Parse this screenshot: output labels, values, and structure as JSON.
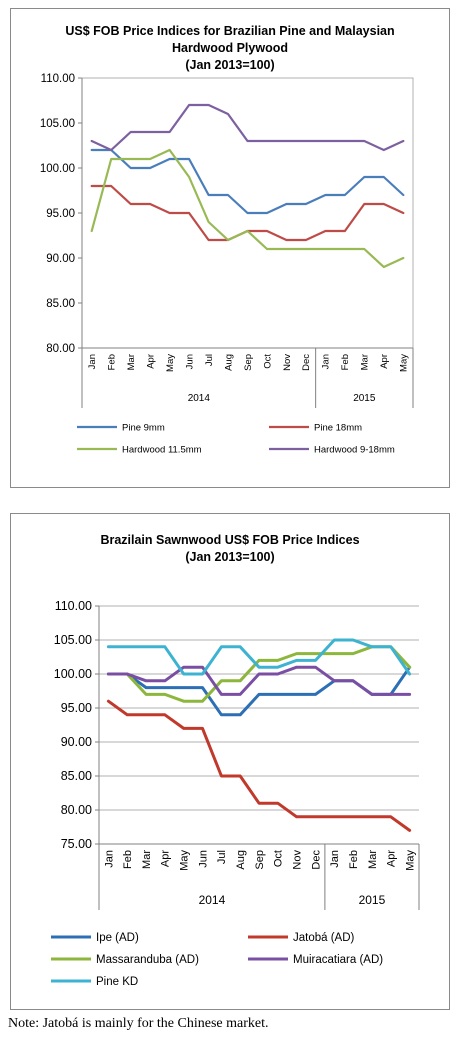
{
  "chart_data": [
    {
      "type": "line",
      "title_lines": [
        "US$ FOB Price Indices for Brazilian Pine and Malaysian",
        "Hardwood Plywood",
        "(Jan 2013=100)"
      ],
      "categories": [
        "Jan",
        "Feb",
        "Mar",
        "Apr",
        "May",
        "Jun",
        "Jul",
        "Aug",
        "Sep",
        "Oct",
        "Nov",
        "Dec",
        "Jan",
        "Feb",
        "Mar",
        "Apr",
        "May"
      ],
      "year_groups": [
        {
          "label": "2014",
          "count": 12
        },
        {
          "label": "2015",
          "count": 5
        }
      ],
      "ylim": [
        80,
        110
      ],
      "ystep": 5,
      "ytick_labels": [
        "80.00",
        "85.00",
        "90.00",
        "95.00",
        "100.00",
        "105.00",
        "110.00"
      ],
      "grid": false,
      "legend_position": "bottom",
      "series": [
        {
          "name": "Pine 9mm",
          "color": "#4a7ebb",
          "values": [
            102,
            102,
            100,
            100,
            101,
            101,
            97,
            97,
            95,
            95,
            96,
            96,
            97,
            97,
            99,
            99,
            97
          ]
        },
        {
          "name": "Pine 18mm",
          "color": "#be4b48",
          "values": [
            98,
            98,
            96,
            96,
            95,
            95,
            92,
            92,
            93,
            93,
            92,
            92,
            93,
            93,
            96,
            96,
            95
          ]
        },
        {
          "name": "Hardwood 11.5mm",
          "color": "#98b954",
          "values": [
            93,
            101,
            101,
            101,
            102,
            99,
            94,
            92,
            93,
            91,
            91,
            91,
            91,
            91,
            91,
            89,
            90
          ]
        },
        {
          "name": "Hardwood 9-18mm",
          "color": "#7d60a0",
          "values": [
            103,
            102,
            104,
            104,
            104,
            107,
            107,
            106,
            103,
            103,
            103,
            103,
            103,
            103,
            103,
            102,
            103
          ]
        }
      ]
    },
    {
      "type": "line",
      "title_lines": [
        "Brazilain Sawnwood US$ FOB Price Indices",
        "(Jan 2013=100)"
      ],
      "categories": [
        "Jan",
        "Feb",
        "Mar",
        "Apr",
        "May",
        "Jun",
        "Jul",
        "Aug",
        "Sep",
        "Oct",
        "Nov",
        "Dec",
        "Jan",
        "Feb",
        "Mar",
        "Apr",
        "May"
      ],
      "year_groups": [
        {
          "label": "2014",
          "count": 12
        },
        {
          "label": "2015",
          "count": 5
        }
      ],
      "ylim": [
        75,
        110
      ],
      "ystep": 5,
      "ytick_labels": [
        "75.00",
        "80.00",
        "85.00",
        "90.00",
        "95.00",
        "100.00",
        "105.00",
        "110.00"
      ],
      "grid": true,
      "legend_position": "bottom",
      "series": [
        {
          "name": "Ipe (AD)",
          "color": "#2c6fb5",
          "values": [
            100,
            100,
            98,
            98,
            98,
            98,
            94,
            94,
            97,
            97,
            97,
            97,
            99,
            99,
            97,
            97,
            101
          ]
        },
        {
          "name": "Jatobá (AD)",
          "color": "#c0392b",
          "values": [
            96,
            94,
            94,
            94,
            92,
            92,
            85,
            85,
            81,
            81,
            79,
            79,
            79,
            79,
            79,
            79,
            77
          ]
        },
        {
          "name": "Massaranduba (AD)",
          "color": "#8cb63c",
          "values": [
            100,
            100,
            97,
            97,
            96,
            96,
            99,
            99,
            102,
            102,
            103,
            103,
            103,
            103,
            104,
            104,
            101
          ]
        },
        {
          "name": "Muiracatiara (AD)",
          "color": "#7a4fa3",
          "values": [
            100,
            100,
            99,
            99,
            101,
            101,
            97,
            97,
            100,
            100,
            101,
            101,
            99,
            99,
            97,
            97,
            97
          ]
        },
        {
          "name": "Pine KD",
          "color": "#3eb3d1",
          "values": [
            104,
            104,
            104,
            104,
            100,
            100,
            104,
            104,
            101,
            101,
            102,
            102,
            105,
            105,
            104,
            104,
            100
          ]
        }
      ]
    }
  ],
  "note": "Note: Jatobá is mainly for the Chinese market."
}
